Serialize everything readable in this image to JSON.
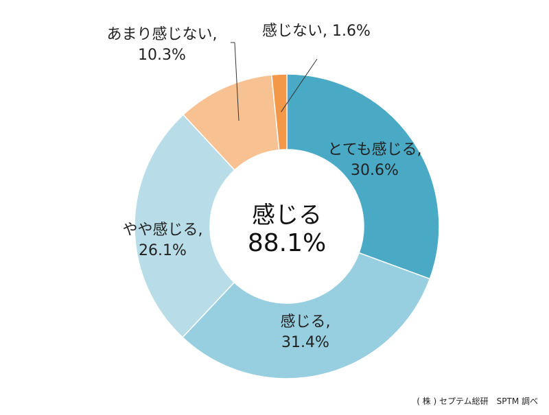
{
  "chart_data": {
    "type": "pie",
    "variant": "donut",
    "categories": [
      "とても感じる",
      "感じる",
      "やや感じる",
      "あまり感じない",
      "感じない"
    ],
    "values": [
      30.6,
      31.4,
      26.1,
      10.3,
      1.6
    ],
    "unit": "%",
    "colors": [
      "#4aaac6",
      "#97cfe0",
      "#b9dde8",
      "#f8c192",
      "#f39848"
    ],
    "labels": [
      {
        "name": "とても感じる,",
        "value": "30.6%"
      },
      {
        "name": "感じる,",
        "value": "31.4%"
      },
      {
        "name": "やや感じる,",
        "value": "26.1%"
      },
      {
        "name": "あまり感じない,",
        "value": "10.3%"
      },
      {
        "name": "感じない,",
        "value": "1.6%"
      }
    ],
    "center": {
      "title": "感じる",
      "value": "88.1%"
    },
    "start_angle": "12 o'clock",
    "direction": "clockwise",
    "legend": "none"
  },
  "credit": "( 株 ) セプテム総研　SPTM 調べ"
}
